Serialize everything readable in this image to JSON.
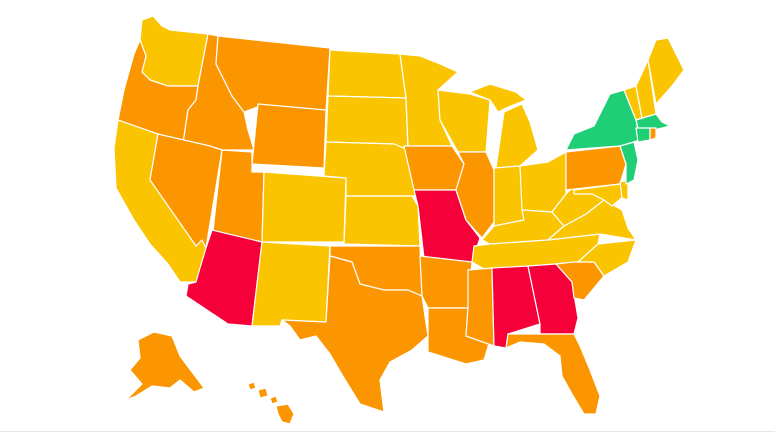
{
  "map": {
    "type": "us-states-choropleth",
    "palette": {
      "green": "#1fce75",
      "yellow": "#fbc400",
      "orange": "#fb9600",
      "red": "#f50038",
      "border": "#ffffff"
    },
    "states": [
      {
        "id": "WA",
        "color": "yellow"
      },
      {
        "id": "OR",
        "color": "orange"
      },
      {
        "id": "CA",
        "color": "yellow"
      },
      {
        "id": "ID",
        "color": "orange"
      },
      {
        "id": "NV",
        "color": "orange"
      },
      {
        "id": "MT",
        "color": "orange"
      },
      {
        "id": "WY",
        "color": "orange"
      },
      {
        "id": "UT",
        "color": "orange"
      },
      {
        "id": "AZ",
        "color": "red"
      },
      {
        "id": "CO",
        "color": "yellow"
      },
      {
        "id": "NM",
        "color": "yellow"
      },
      {
        "id": "ND",
        "color": "yellow"
      },
      {
        "id": "SD",
        "color": "yellow"
      },
      {
        "id": "NE",
        "color": "yellow"
      },
      {
        "id": "KS",
        "color": "yellow"
      },
      {
        "id": "OK",
        "color": "orange"
      },
      {
        "id": "TX",
        "color": "orange"
      },
      {
        "id": "MN",
        "color": "yellow"
      },
      {
        "id": "IA",
        "color": "orange"
      },
      {
        "id": "MO",
        "color": "red"
      },
      {
        "id": "AR",
        "color": "orange"
      },
      {
        "id": "LA",
        "color": "orange"
      },
      {
        "id": "WI",
        "color": "yellow"
      },
      {
        "id": "IL",
        "color": "orange"
      },
      {
        "id": "MI",
        "color": "yellow"
      },
      {
        "id": "IN",
        "color": "yellow"
      },
      {
        "id": "OH",
        "color": "yellow"
      },
      {
        "id": "KY",
        "color": "yellow"
      },
      {
        "id": "TN",
        "color": "yellow"
      },
      {
        "id": "MS",
        "color": "orange"
      },
      {
        "id": "AL",
        "color": "red"
      },
      {
        "id": "GA",
        "color": "red"
      },
      {
        "id": "FL",
        "color": "orange"
      },
      {
        "id": "SC",
        "color": "orange"
      },
      {
        "id": "NC",
        "color": "yellow"
      },
      {
        "id": "VA",
        "color": "yellow"
      },
      {
        "id": "WV",
        "color": "yellow"
      },
      {
        "id": "PA",
        "color": "orange"
      },
      {
        "id": "NY",
        "color": "green"
      },
      {
        "id": "NJ",
        "color": "green"
      },
      {
        "id": "DE",
        "color": "yellow"
      },
      {
        "id": "MD",
        "color": "yellow"
      },
      {
        "id": "CT",
        "color": "green"
      },
      {
        "id": "RI",
        "color": "orange"
      },
      {
        "id": "MA",
        "color": "green"
      },
      {
        "id": "VT",
        "color": "yellow"
      },
      {
        "id": "NH",
        "color": "yellow"
      },
      {
        "id": "ME",
        "color": "yellow"
      },
      {
        "id": "AK",
        "color": "orange"
      },
      {
        "id": "HI",
        "color": "orange"
      }
    ]
  }
}
